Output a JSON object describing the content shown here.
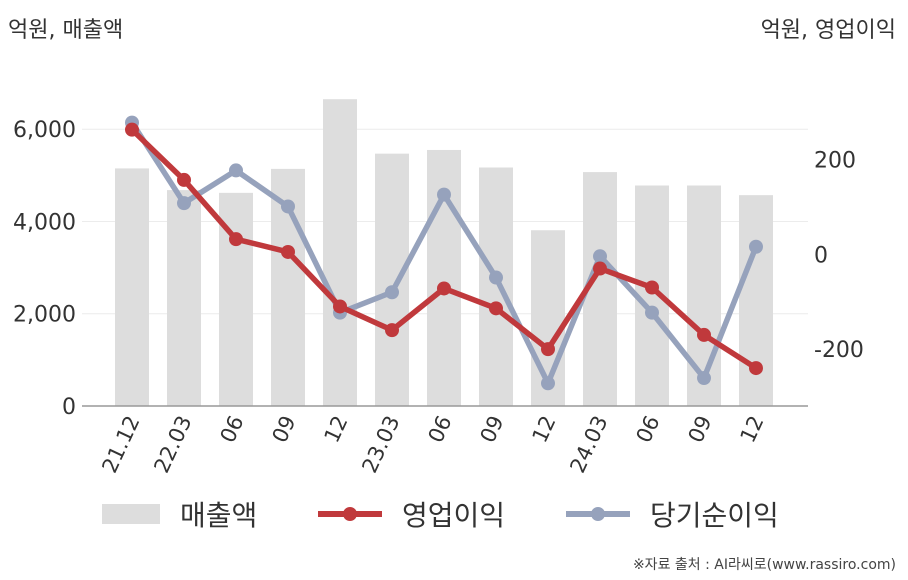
{
  "chart_data": {
    "type": "bar+line",
    "left_axis_label": "억원, 매출액",
    "right_axis_label": "억원, 영업이익",
    "categories": [
      "21.12",
      "22.03",
      "06",
      "09",
      "12",
      "23.03",
      "06",
      "09",
      "12",
      "24.03",
      "06",
      "09",
      "12"
    ],
    "left_ticks": [
      "0",
      "2,000",
      "4,000",
      "6,000"
    ],
    "left_tick_values": [
      0,
      2000,
      4000,
      6000
    ],
    "right_ticks": [
      "-200",
      "0",
      "200"
    ],
    "right_tick_values": [
      -200,
      0,
      200
    ],
    "ylim_left": [
      0,
      7500
    ],
    "ylim_right": [
      -320,
      410
    ],
    "series": [
      {
        "name": "매출액",
        "type": "bar",
        "axis": "left",
        "color": "#dddddd",
        "values": [
          5150,
          4680,
          4620,
          5140,
          6650,
          5470,
          5550,
          5170,
          3810,
          5070,
          4780,
          4780,
          4570
        ]
      },
      {
        "name": "영업이익",
        "type": "line",
        "axis": "right",
        "color": "#c0393c",
        "values": [
          263,
          157,
          32,
          5,
          -110,
          -160,
          -72,
          -114,
          -200,
          -30,
          -70,
          -170,
          -240
        ]
      },
      {
        "name": "당기순이익",
        "type": "line",
        "axis": "right",
        "color": "#96a2bc",
        "values": [
          278,
          108,
          177,
          101,
          -123,
          -80,
          126,
          -49,
          -272,
          -4,
          -123,
          -261,
          16
        ]
      }
    ],
    "legend_position": "bottom",
    "grid": true
  },
  "source_text": "※자료 출처 : AI라씨로(www.rassiro.com)"
}
